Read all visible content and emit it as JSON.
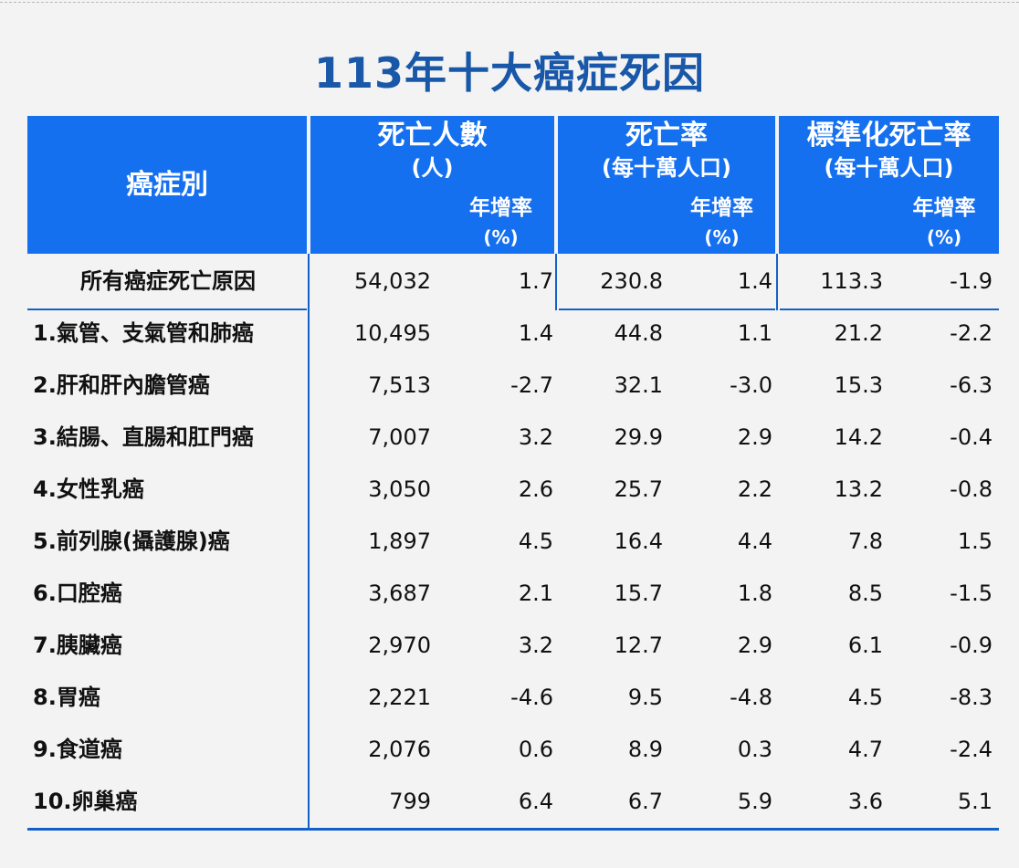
{
  "title": "113年十大癌症死因",
  "header": {
    "category": "癌症別",
    "deaths_title": "死亡人數",
    "deaths_unit": "(人)",
    "rate_title": "死亡率",
    "rate_unit": "(每十萬人口)",
    "std_title": "標準化死亡率",
    "std_unit": "(每十萬人口)",
    "growth_label": "年增率",
    "growth_unit": "(%)"
  },
  "total_row": {
    "name": "所有癌症死亡原因",
    "deaths": "54,032",
    "deaths_growth": "1.7",
    "rate": "230.8",
    "rate_growth": "1.4",
    "std": "113.3",
    "std_growth": "-1.9"
  },
  "rows": [
    {
      "name": "1.氣管、支氣管和肺癌",
      "deaths": "10,495",
      "deaths_growth": "1.4",
      "rate": "44.8",
      "rate_growth": "1.1",
      "std": "21.2",
      "std_growth": "-2.2"
    },
    {
      "name": "2.肝和肝內膽管癌",
      "deaths": "7,513",
      "deaths_growth": "-2.7",
      "rate": "32.1",
      "rate_growth": "-3.0",
      "std": "15.3",
      "std_growth": "-6.3"
    },
    {
      "name": "3.結腸、直腸和肛門癌",
      "deaths": "7,007",
      "deaths_growth": "3.2",
      "rate": "29.9",
      "rate_growth": "2.9",
      "std": "14.2",
      "std_growth": "-0.4"
    },
    {
      "name": "4.女性乳癌",
      "deaths": "3,050",
      "deaths_growth": "2.6",
      "rate": "25.7",
      "rate_growth": "2.2",
      "std": "13.2",
      "std_growth": "-0.8"
    },
    {
      "name": "5.前列腺(攝護腺)癌",
      "deaths": "1,897",
      "deaths_growth": "4.5",
      "rate": "16.4",
      "rate_growth": "4.4",
      "std": "7.8",
      "std_growth": "1.5"
    },
    {
      "name": "6.口腔癌",
      "deaths": "3,687",
      "deaths_growth": "2.1",
      "rate": "15.7",
      "rate_growth": "1.8",
      "std": "8.5",
      "std_growth": "-1.5"
    },
    {
      "name": "7.胰臟癌",
      "deaths": "2,970",
      "deaths_growth": "3.2",
      "rate": "12.7",
      "rate_growth": "2.9",
      "std": "6.1",
      "std_growth": "-0.9"
    },
    {
      "name": "8.胃癌",
      "deaths": "2,221",
      "deaths_growth": "-4.6",
      "rate": "9.5",
      "rate_growth": "-4.8",
      "std": "4.5",
      "std_growth": "-8.3"
    },
    {
      "name": "9.食道癌",
      "deaths": "2,076",
      "deaths_growth": "0.6",
      "rate": "8.9",
      "rate_growth": "0.3",
      "std": "4.7",
      "std_growth": "-2.4"
    },
    {
      "name": "10.卵巢癌",
      "deaths": "799",
      "deaths_growth": "6.4",
      "rate": "6.7",
      "rate_growth": "5.9",
      "std": "3.6",
      "std_growth": "5.1"
    }
  ]
}
